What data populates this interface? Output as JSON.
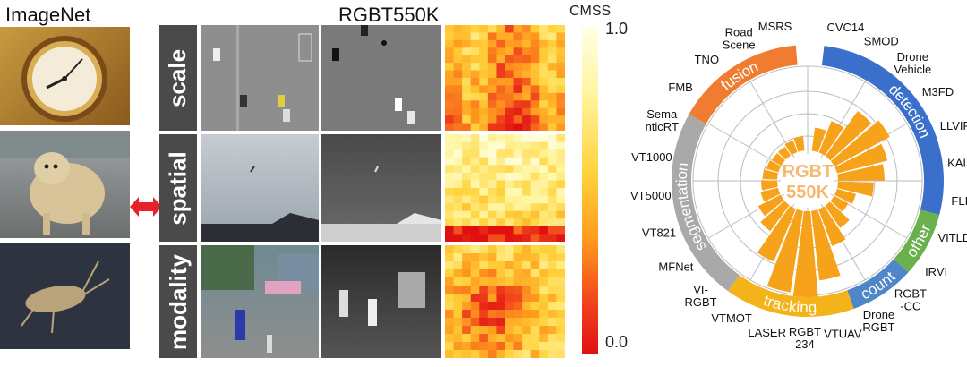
{
  "left": {
    "title": "ImageNet"
  },
  "middle": {
    "title": "RGBT550K",
    "rows": [
      "scale",
      "spatial",
      "modality"
    ]
  },
  "colorbar": {
    "title": "CMSS",
    "max": "1.0",
    "min": "0.0"
  },
  "wheel": {
    "center_line1": "RGBT",
    "center_line2": "550K",
    "groups": [
      {
        "name": "fusion",
        "color": "#f07c32"
      },
      {
        "name": "detection",
        "color": "#3b6fcc"
      },
      {
        "name": "other",
        "color": "#6ab04c"
      },
      {
        "name": "count",
        "color": "#4e86c8"
      },
      {
        "name": "tracking",
        "color": "#f5b31a"
      },
      {
        "name": "segmentation",
        "color": "#a9a9a9"
      }
    ],
    "datasets": [
      {
        "label": "CVC14",
        "group": "detection"
      },
      {
        "label": "SMOD",
        "group": "detection"
      },
      {
        "label": "Drone Vehicle",
        "group": "detection"
      },
      {
        "label": "M3FD",
        "group": "detection"
      },
      {
        "label": "LLVIP",
        "group": "detection"
      },
      {
        "label": "KAIST",
        "group": "detection"
      },
      {
        "label": "FLIR",
        "group": "detection"
      },
      {
        "label": "VITLD",
        "group": "other"
      },
      {
        "label": "IRVI",
        "group": "other"
      },
      {
        "label": "RGBT -CC",
        "group": "count"
      },
      {
        "label": "Drone RGBT",
        "group": "count"
      },
      {
        "label": "VTUAV",
        "group": "tracking"
      },
      {
        "label": "RGBT 234",
        "group": "tracking"
      },
      {
        "label": "LASER",
        "group": "tracking"
      },
      {
        "label": "VTMOT",
        "group": "tracking"
      },
      {
        "label": "VI- RGBT",
        "group": "segmentation"
      },
      {
        "label": "MFNet",
        "group": "segmentation"
      },
      {
        "label": "VT821",
        "group": "segmentation"
      },
      {
        "label": "VT5000",
        "group": "segmentation"
      },
      {
        "label": "VT1000",
        "group": "segmentation"
      },
      {
        "label": "Sema nticRT",
        "group": "segmentation"
      },
      {
        "label": "FMB",
        "group": "fusion"
      },
      {
        "label": "TNO",
        "group": "fusion"
      },
      {
        "label": "Road Scene",
        "group": "fusion"
      },
      {
        "label": "MSRS",
        "group": "fusion"
      }
    ]
  },
  "colors": {
    "accent_orange": "#f7a21b",
    "arrow_red": "#e8222a",
    "label_gray": "#4a4a4a"
  }
}
